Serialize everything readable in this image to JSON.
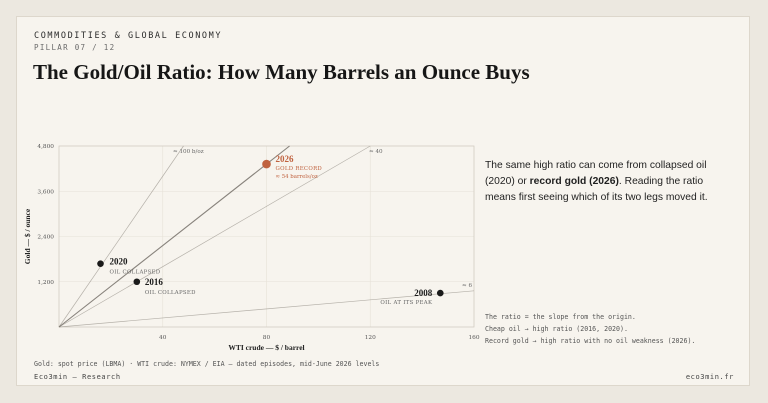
{
  "header": {
    "kicker": "COMMODITIES & GLOBAL ECONOMY",
    "pillar": "PILLAR 07 / 12",
    "title": "The Gold/Oil Ratio: How Many Barrels an Ounce Buys"
  },
  "colors": {
    "background": "#f7f4ee",
    "point": "#1a1a1a",
    "highlight": "#c0623f",
    "line": "#9a958d",
    "line_strong": "#7c7770",
    "grid": "#e6e1d8"
  },
  "chart_data": {
    "type": "scatter",
    "xlabel": "WTI crude — $ / barrel",
    "ylabel": "Gold — $ / ounce",
    "xlim": [
      0,
      160
    ],
    "ylim": [
      0,
      4800
    ],
    "xticks": [
      40,
      80,
      120,
      160
    ],
    "yticks": [
      1200,
      2400,
      3600,
      4800
    ],
    "xtick_labels": [
      "40",
      "80",
      "120",
      "160"
    ],
    "ytick_labels": [
      "1,200",
      "2,400",
      "3,600",
      "4,800"
    ],
    "grid": true,
    "points": [
      {
        "label": "2020",
        "sublabel": "OIL COLLAPSED",
        "x": 16,
        "y": 1680,
        "highlight": false
      },
      {
        "label": "2016",
        "sublabel": "OIL COLLAPSED",
        "x": 30,
        "y": 1200,
        "highlight": false
      },
      {
        "label": "2026",
        "sublabel": "GOLD RECORD",
        "note": "≈ 54 barrels/oz",
        "x": 80,
        "y": 4320,
        "highlight": true
      },
      {
        "label": "2008",
        "sublabel": "OIL AT ITS PEAK",
        "x": 147,
        "y": 900,
        "highlight": false
      }
    ],
    "ratio_lines": [
      {
        "label": "≈ 100 b/oz",
        "ratio": 100
      },
      {
        "label": "≈ 40",
        "ratio": 40
      },
      {
        "label": "≈ 6",
        "ratio": 6
      },
      {
        "label": "",
        "ratio": 54,
        "strong": true
      }
    ]
  },
  "side": {
    "text_1": "The same high ratio can come from collapsed oil (2020) or ",
    "text_bold": "record gold (2026)",
    "text_2": ". Reading the ratio means first seeing which of its two legs moved it."
  },
  "notes": [
    "The ratio = the slope from the origin.",
    "Cheap oil → high ratio (2016, 2020).",
    "Record gold → high ratio with no oil weakness (2026)."
  ],
  "footer": {
    "source": "Gold: spot price (LBMA) · WTI crude: NYMEX / EIA — dated episodes, mid-June 2026 levels",
    "brand": "Eco3min — Research",
    "site": "eco3min.fr"
  }
}
